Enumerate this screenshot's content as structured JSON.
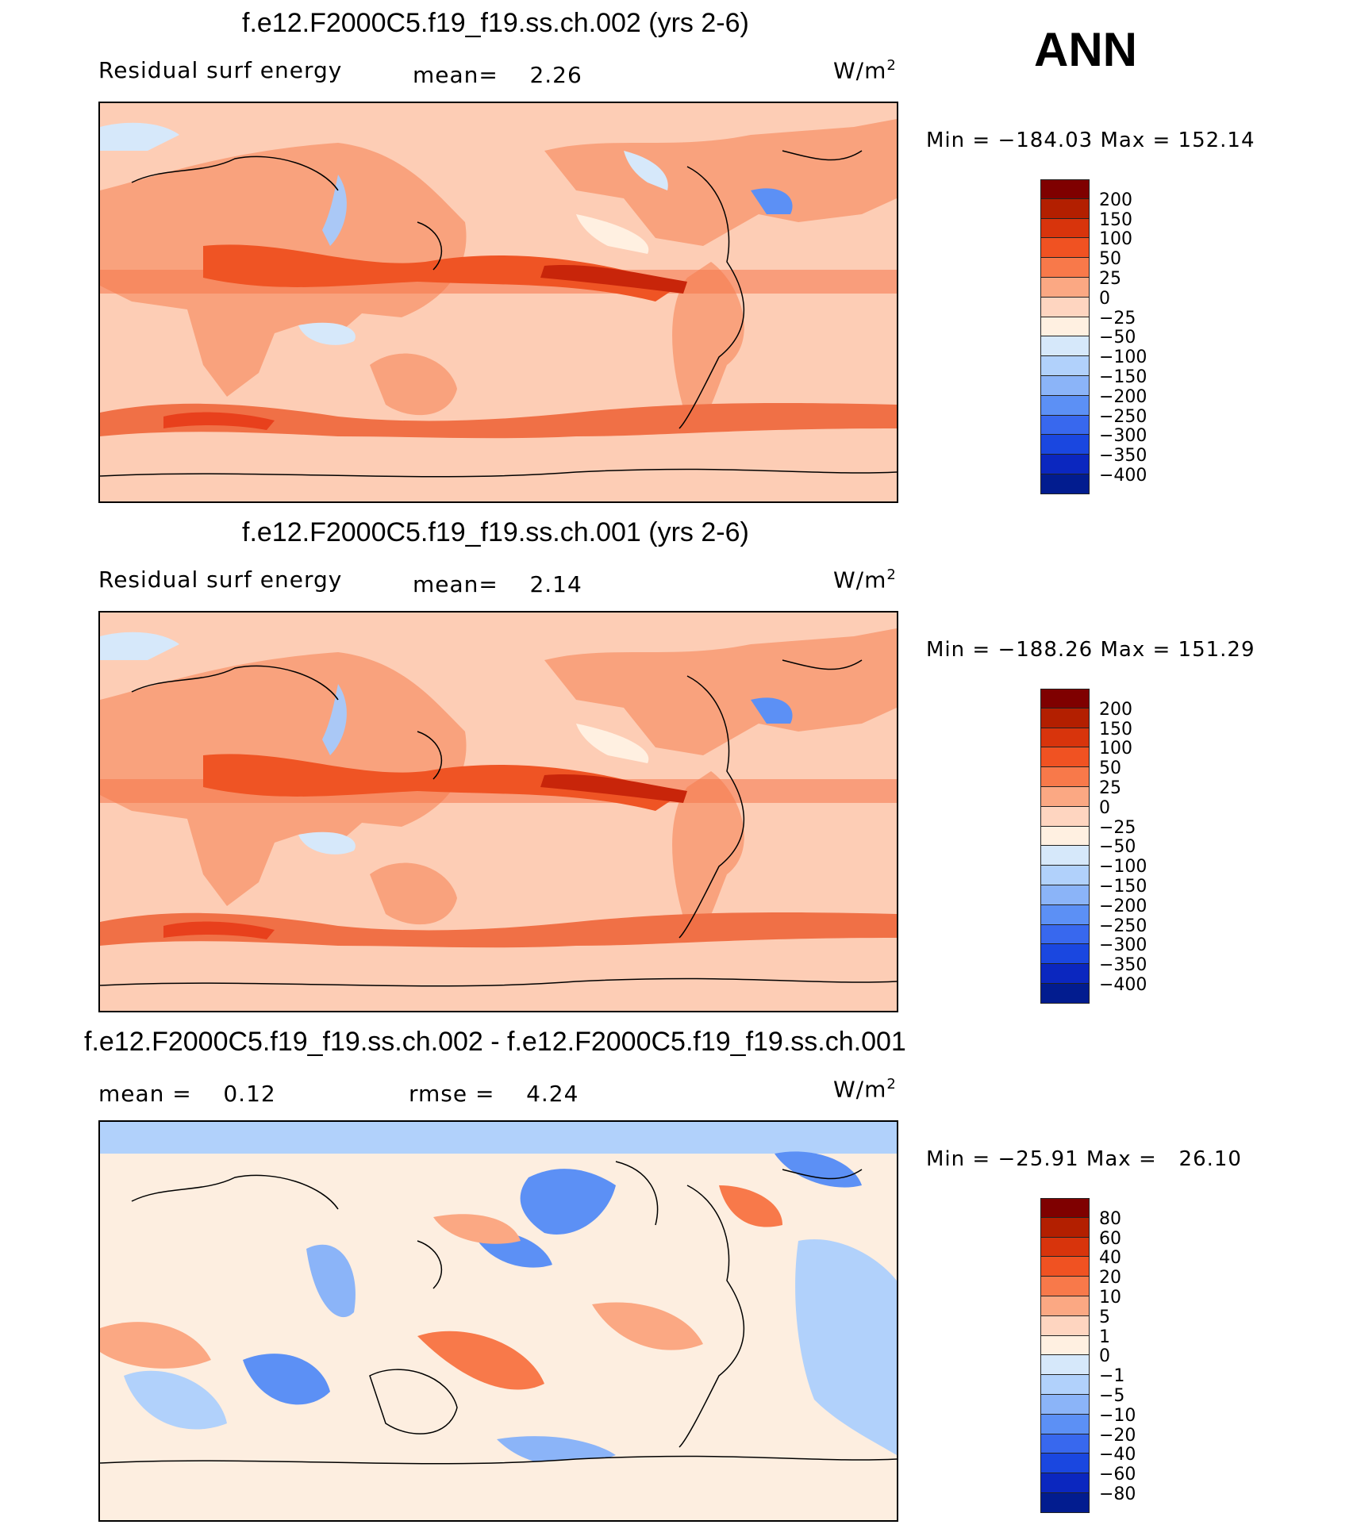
{
  "ann_label": "ANN",
  "panels": [
    {
      "title": "f.e12.F2000C5.f19_f19.ss.ch.002 (yrs 2-6)",
      "left_label": "Residual surf energy",
      "mid_label": "mean=    2.26",
      "units": "W/m",
      "units_sup": "2",
      "minmax": "Min = −184.03 Max = 152.14",
      "colorbar": {
        "colors": [
          "#7f0000",
          "#b31f00",
          "#d8340c",
          "#f05222",
          "#f8794a",
          "#fba883",
          "#fed5c0",
          "#fff0e1",
          "#d6e8fa",
          "#b1d1fb",
          "#8bb4f8",
          "#5c90f5",
          "#3868ee",
          "#1a47e0",
          "#0b27bf",
          "#021c8f"
        ],
        "labels": [
          "200",
          "150",
          "100",
          "50",
          "25",
          "0",
          "−25",
          "−50",
          "−100",
          "−150",
          "−200",
          "−250",
          "−300",
          "−350",
          "−400"
        ]
      }
    },
    {
      "title": "f.e12.F2000C5.f19_f19.ss.ch.001 (yrs 2-6)",
      "left_label": "Residual surf energy",
      "mid_label": "mean=    2.14",
      "units": "W/m",
      "units_sup": "2",
      "minmax": "Min = −188.26 Max = 151.29",
      "colorbar": {
        "colors": [
          "#7f0000",
          "#b31f00",
          "#d8340c",
          "#f05222",
          "#f8794a",
          "#fba883",
          "#fed5c0",
          "#fff0e1",
          "#d6e8fa",
          "#b1d1fb",
          "#8bb4f8",
          "#5c90f5",
          "#3868ee",
          "#1a47e0",
          "#0b27bf",
          "#021c8f"
        ],
        "labels": [
          "200",
          "150",
          "100",
          "50",
          "25",
          "0",
          "−25",
          "−50",
          "−100",
          "−150",
          "−200",
          "−250",
          "−300",
          "−350",
          "−400"
        ]
      }
    },
    {
      "title": "f.e12.F2000C5.f19_f19.ss.ch.002 - f.e12.F2000C5.f19_f19.ss.ch.001",
      "left_label": "mean =    0.12",
      "mid_label": "rmse =    4.24",
      "units": "W/m",
      "units_sup": "2",
      "minmax": "Min = −25.91 Max =   26.10",
      "colorbar": {
        "colors": [
          "#7f0000",
          "#b31f00",
          "#d8340c",
          "#f05222",
          "#f8794a",
          "#fba883",
          "#fed5c0",
          "#fff0e1",
          "#d6e8fa",
          "#b1d1fb",
          "#8bb4f8",
          "#5c90f5",
          "#3868ee",
          "#1a47e0",
          "#0b27bf",
          "#021c8f"
        ],
        "labels": [
          "80",
          "60",
          "40",
          "20",
          "10",
          "5",
          "1",
          "0",
          "−1",
          "−5",
          "−10",
          "−20",
          "−40",
          "−60",
          "−80"
        ]
      }
    }
  ],
  "chart_data": [
    {
      "type": "heatmap",
      "title": "f.e12.F2000C5.f19_f19.ss.ch.002 (yrs 2-6)",
      "variable": "Residual surf energy",
      "units": "W/m2",
      "mean": 2.26,
      "min": -184.03,
      "max": 152.14,
      "levels": [
        200,
        150,
        100,
        50,
        25,
        0,
        -25,
        -50,
        -100,
        -150,
        -200,
        -250,
        -300,
        -350,
        -400
      ],
      "background_color": "#fdcdb5"
    },
    {
      "type": "heatmap",
      "title": "f.e12.F2000C5.f19_f19.ss.ch.001 (yrs 2-6)",
      "variable": "Residual surf energy",
      "units": "W/m2",
      "mean": 2.14,
      "min": -188.26,
      "max": 151.29,
      "levels": [
        200,
        150,
        100,
        50,
        25,
        0,
        -25,
        -50,
        -100,
        -150,
        -200,
        -250,
        -300,
        -350,
        -400
      ],
      "background_color": "#fdcdb5"
    },
    {
      "type": "heatmap",
      "title": "f.e12.F2000C5.f19_f19.ss.ch.002 - f.e12.F2000C5.f19_f19.ss.ch.001",
      "units": "W/m2",
      "mean": 0.12,
      "rmse": 4.24,
      "min": -25.91,
      "max": 26.1,
      "levels": [
        80,
        60,
        40,
        20,
        10,
        5,
        1,
        0,
        -1,
        -5,
        -10,
        -20,
        -40,
        -60,
        -80
      ],
      "background_color": "#fdeee0"
    }
  ]
}
